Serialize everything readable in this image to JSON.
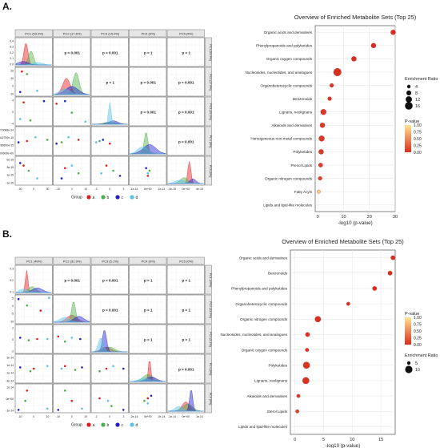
{
  "figure": {
    "panel_labels": [
      "A.",
      "B."
    ],
    "group_legend": {
      "title": "Group",
      "items": [
        {
          "label": "a",
          "color": "#e41a1c"
        },
        {
          "label": "b",
          "color": "#4daf4a"
        },
        {
          "label": "c",
          "color": "#1f1fd0"
        },
        {
          "label": "d",
          "color": "#56c4e8"
        }
      ]
    },
    "pvalue_colors": {
      "low": "#d7301f",
      "high": "#fee391"
    }
  },
  "chart_data": [
    {
      "type": "scatter",
      "panel": "A",
      "subtype": "pairs-matrix",
      "headers": [
        "PC1 (53.9%)",
        "PC2 (17.6%)",
        "PC3 (15.0%)",
        "PC4 (9%)",
        "PC5 (5%)"
      ],
      "row_labels": [
        "PC1 (53.9%)",
        "PC2 (17.6%)",
        "PC3 (15.0%)",
        "PC4 (9%)",
        "PC5 (5%)"
      ],
      "p_values": [
        {
          "row": 1,
          "col": 2,
          "label": "p = 0.001"
        },
        {
          "row": 1,
          "col": 3,
          "label": "p = 0.001"
        },
        {
          "row": 1,
          "col": 4,
          "label": "p = 1"
        },
        {
          "row": 1,
          "col": 5,
          "label": "p = 1"
        },
        {
          "row": 2,
          "col": 3,
          "label": "p = 1"
        },
        {
          "row": 2,
          "col": 4,
          "label": "p = 0.001"
        },
        {
          "row": 2,
          "col": 5,
          "label": "p = 0.001"
        },
        {
          "row": 3,
          "col": 4,
          "label": "p = 0.001"
        },
        {
          "row": 3,
          "col": 5,
          "label": "p = 0.001"
        },
        {
          "row": 4,
          "col": 5,
          "label": "p = 0.001"
        }
      ],
      "y_ticks_col1": [
        [
          "0.4",
          "0.3",
          "0.2",
          "0.1",
          "0.0"
        ],
        [
          "20",
          "10",
          "0",
          "-10"
        ],
        [
          "4",
          "0",
          "-4"
        ],
        [
          "1.0270088e-14",
          "5.442700e-15",
          "1.285550e-15",
          "0.000000e+00"
        ],
        [
          "5e-15",
          "3e-15",
          "1e-15",
          "-1e-15"
        ]
      ],
      "x_ticks_row5": [
        [
          "-30",
          "0",
          "30"
        ],
        [
          "-10",
          "0",
          "10"
        ],
        [
          "-3",
          "0",
          "3"
        ],
        [
          "-1e-14",
          "0e+00",
          "1e-14"
        ],
        [
          "-4e-15",
          "0e+00",
          "4e-15"
        ]
      ]
    },
    {
      "type": "scatter",
      "panel": "A",
      "subtype": "dot-plot",
      "title": "Overview of Enriched Metabolite Sets (Top 25)",
      "xlabel": "-log10 (p-value)",
      "xlim": [
        -1,
        30
      ],
      "x_ticks": [
        0,
        10,
        20,
        30
      ],
      "categories": [
        "Organic acids and derivatives",
        "Phenylpropanoids and polyketides",
        "Organic oxygen compounds",
        "Nucleosides, nucleotides, and analogues",
        "Organoheterocyclic compounds",
        "Benzenoids",
        "Lignans, neolignans",
        "Alkaloids and derivatives",
        "Homogeneous non-metal compounds",
        "Polyketides",
        "Prenol Lipids",
        "Organic nitrogen compounds",
        "Fatty Acyls",
        "Lipids and lipid-like molecules"
      ],
      "values": [
        29.2,
        21.6,
        14.0,
        7.6,
        5.4,
        4.6,
        2.2,
        1.8,
        1.5,
        1.3,
        1.1,
        0.9,
        0.4,
        null
      ],
      "enrichment_ratio": [
        8,
        8,
        8,
        16,
        5,
        5,
        10,
        8,
        10,
        8,
        6,
        5,
        4,
        null
      ],
      "p_value_fill": [
        0.0,
        0.0,
        0.0,
        0.0,
        0.02,
        0.03,
        0.05,
        0.05,
        0.05,
        0.06,
        0.08,
        0.12,
        0.9,
        null
      ],
      "size_legend": {
        "title": "Enrichment Ratio",
        "values": [
          "4",
          "8",
          "12",
          "16"
        ]
      },
      "color_legend": {
        "title": "P-value",
        "ticks": [
          "1.00",
          "0.75",
          "0.50",
          "0.25",
          "0.00"
        ]
      },
      "grid": true
    },
    {
      "type": "scatter",
      "panel": "B",
      "subtype": "pairs-matrix",
      "headers": [
        "PC1 (49%)",
        "PC2 (31.9%)",
        "PC3 (5.1%)",
        "PC4 (0%)",
        "PC5 (0%)"
      ],
      "row_labels": [
        "PC1 (49%)",
        "PC2 (31.9%)",
        "PC3 (5.1%)",
        "PC4 (0%)",
        "PC5 (0%)"
      ],
      "p_values": [
        {
          "row": 1,
          "col": 2,
          "label": "p = 0.001"
        },
        {
          "row": 1,
          "col": 3,
          "label": "p = 0.001"
        },
        {
          "row": 1,
          "col": 4,
          "label": "p = 1"
        },
        {
          "row": 1,
          "col": 5,
          "label": "p = 1"
        },
        {
          "row": 2,
          "col": 3,
          "label": "p = 0.001"
        },
        {
          "row": 2,
          "col": 4,
          "label": "p = 1"
        },
        {
          "row": 2,
          "col": 5,
          "label": "p = 1"
        },
        {
          "row": 3,
          "col": 4,
          "label": "p = 1"
        },
        {
          "row": 3,
          "col": 5,
          "label": "p = 1"
        },
        {
          "row": 4,
          "col": 5,
          "label": "p = 0.001"
        }
      ],
      "y_ticks_col1": [
        [
          "0.3",
          "0.2",
          "0.1"
        ],
        [
          "5",
          "0",
          "-5",
          "-10"
        ],
        [
          "2",
          "0",
          "-2"
        ],
        [
          "3e-14",
          "1e-14",
          "-1e-14",
          "-3e-14"
        ],
        [
          "1e-14",
          "0e+00",
          "-1e-14"
        ]
      ],
      "x_ticks_row5": [
        [
          "-10",
          "0",
          "10"
        ],
        [
          "-10",
          "0",
          "10"
        ],
        [
          "-2",
          "0",
          "2"
        ],
        [
          "-2e-14",
          "0e+00",
          "2e-14"
        ],
        [
          "-1e-14",
          "0e+00",
          "1e-14"
        ]
      ]
    },
    {
      "type": "scatter",
      "panel": "B",
      "subtype": "dot-plot",
      "title": "Overview of Enriched Metabolite Sets (Top 25)",
      "xlabel": "-log10 (p-value)",
      "xlim": [
        -0.8,
        17.5
      ],
      "x_ticks": [
        0,
        5,
        10,
        15
      ],
      "categories": [
        "Organic acids and derivatives",
        "Benzenoids",
        "Phenylpropanoids and polyketides",
        "Organoheterocyclic compounds",
        "Organic nitrogen compounds",
        "Nucleosides, nucleotides, and analogues",
        "Organic oxygen compounds",
        "Polyketides",
        "Lignans, neolignans",
        "Alkaloids and derivatives",
        "Sterol Lipids",
        "Lipids and lipid-like molecules"
      ],
      "values": [
        17.1,
        16.6,
        13.9,
        9.3,
        4.0,
        2.2,
        2.1,
        2.0,
        1.9,
        0.6,
        0.4,
        null
      ],
      "enrichment_ratio": [
        6,
        6,
        6,
        5,
        8,
        6,
        5,
        9,
        9,
        5,
        5,
        null
      ],
      "p_value_fill": [
        0.0,
        0.0,
        0.0,
        0.0,
        0.0,
        0.02,
        0.02,
        0.02,
        0.02,
        0.08,
        0.1,
        null
      ],
      "size_legend": {
        "title": "Enrichment Ratio",
        "values": [
          "5",
          "10"
        ]
      },
      "color_legend": {
        "title": "P-value",
        "ticks": [
          "1.00",
          "0.75",
          "0.50",
          "0.25",
          "0.00"
        ]
      },
      "grid": true
    }
  ]
}
